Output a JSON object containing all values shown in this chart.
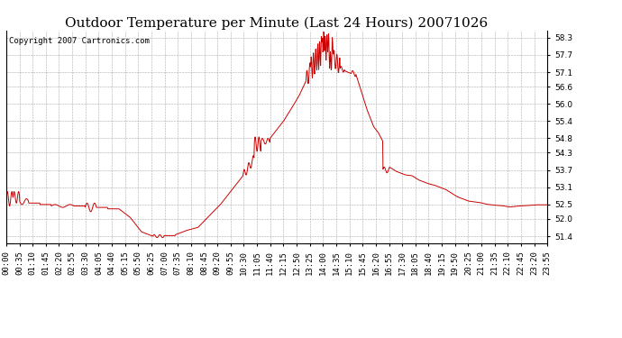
{
  "title": "Outdoor Temperature per Minute (Last 24 Hours) 20071026",
  "copyright_text": "Copyright 2007 Cartronics.com",
  "line_color": "#cc0000",
  "background_color": "#ffffff",
  "plot_bg_color": "#ffffff",
  "grid_color": "#aaaaaa",
  "yticks": [
    51.4,
    52.0,
    52.5,
    53.1,
    53.7,
    54.3,
    54.8,
    55.4,
    56.0,
    56.6,
    57.1,
    57.7,
    58.3
  ],
  "ylim": [
    51.15,
    58.55
  ],
  "xtick_labels": [
    "00:00",
    "00:35",
    "01:10",
    "01:45",
    "02:20",
    "02:55",
    "03:30",
    "04:05",
    "04:40",
    "05:15",
    "05:50",
    "06:25",
    "07:00",
    "07:35",
    "08:10",
    "08:45",
    "09:20",
    "09:55",
    "10:30",
    "11:05",
    "11:40",
    "12:15",
    "12:50",
    "13:25",
    "14:00",
    "14:35",
    "15:10",
    "15:45",
    "16:20",
    "16:55",
    "17:30",
    "18:05",
    "18:40",
    "19:15",
    "19:50",
    "20:25",
    "21:00",
    "21:35",
    "22:10",
    "22:45",
    "23:20",
    "23:55"
  ],
  "title_fontsize": 11,
  "tick_fontsize": 6.5,
  "copyright_fontsize": 6.5
}
